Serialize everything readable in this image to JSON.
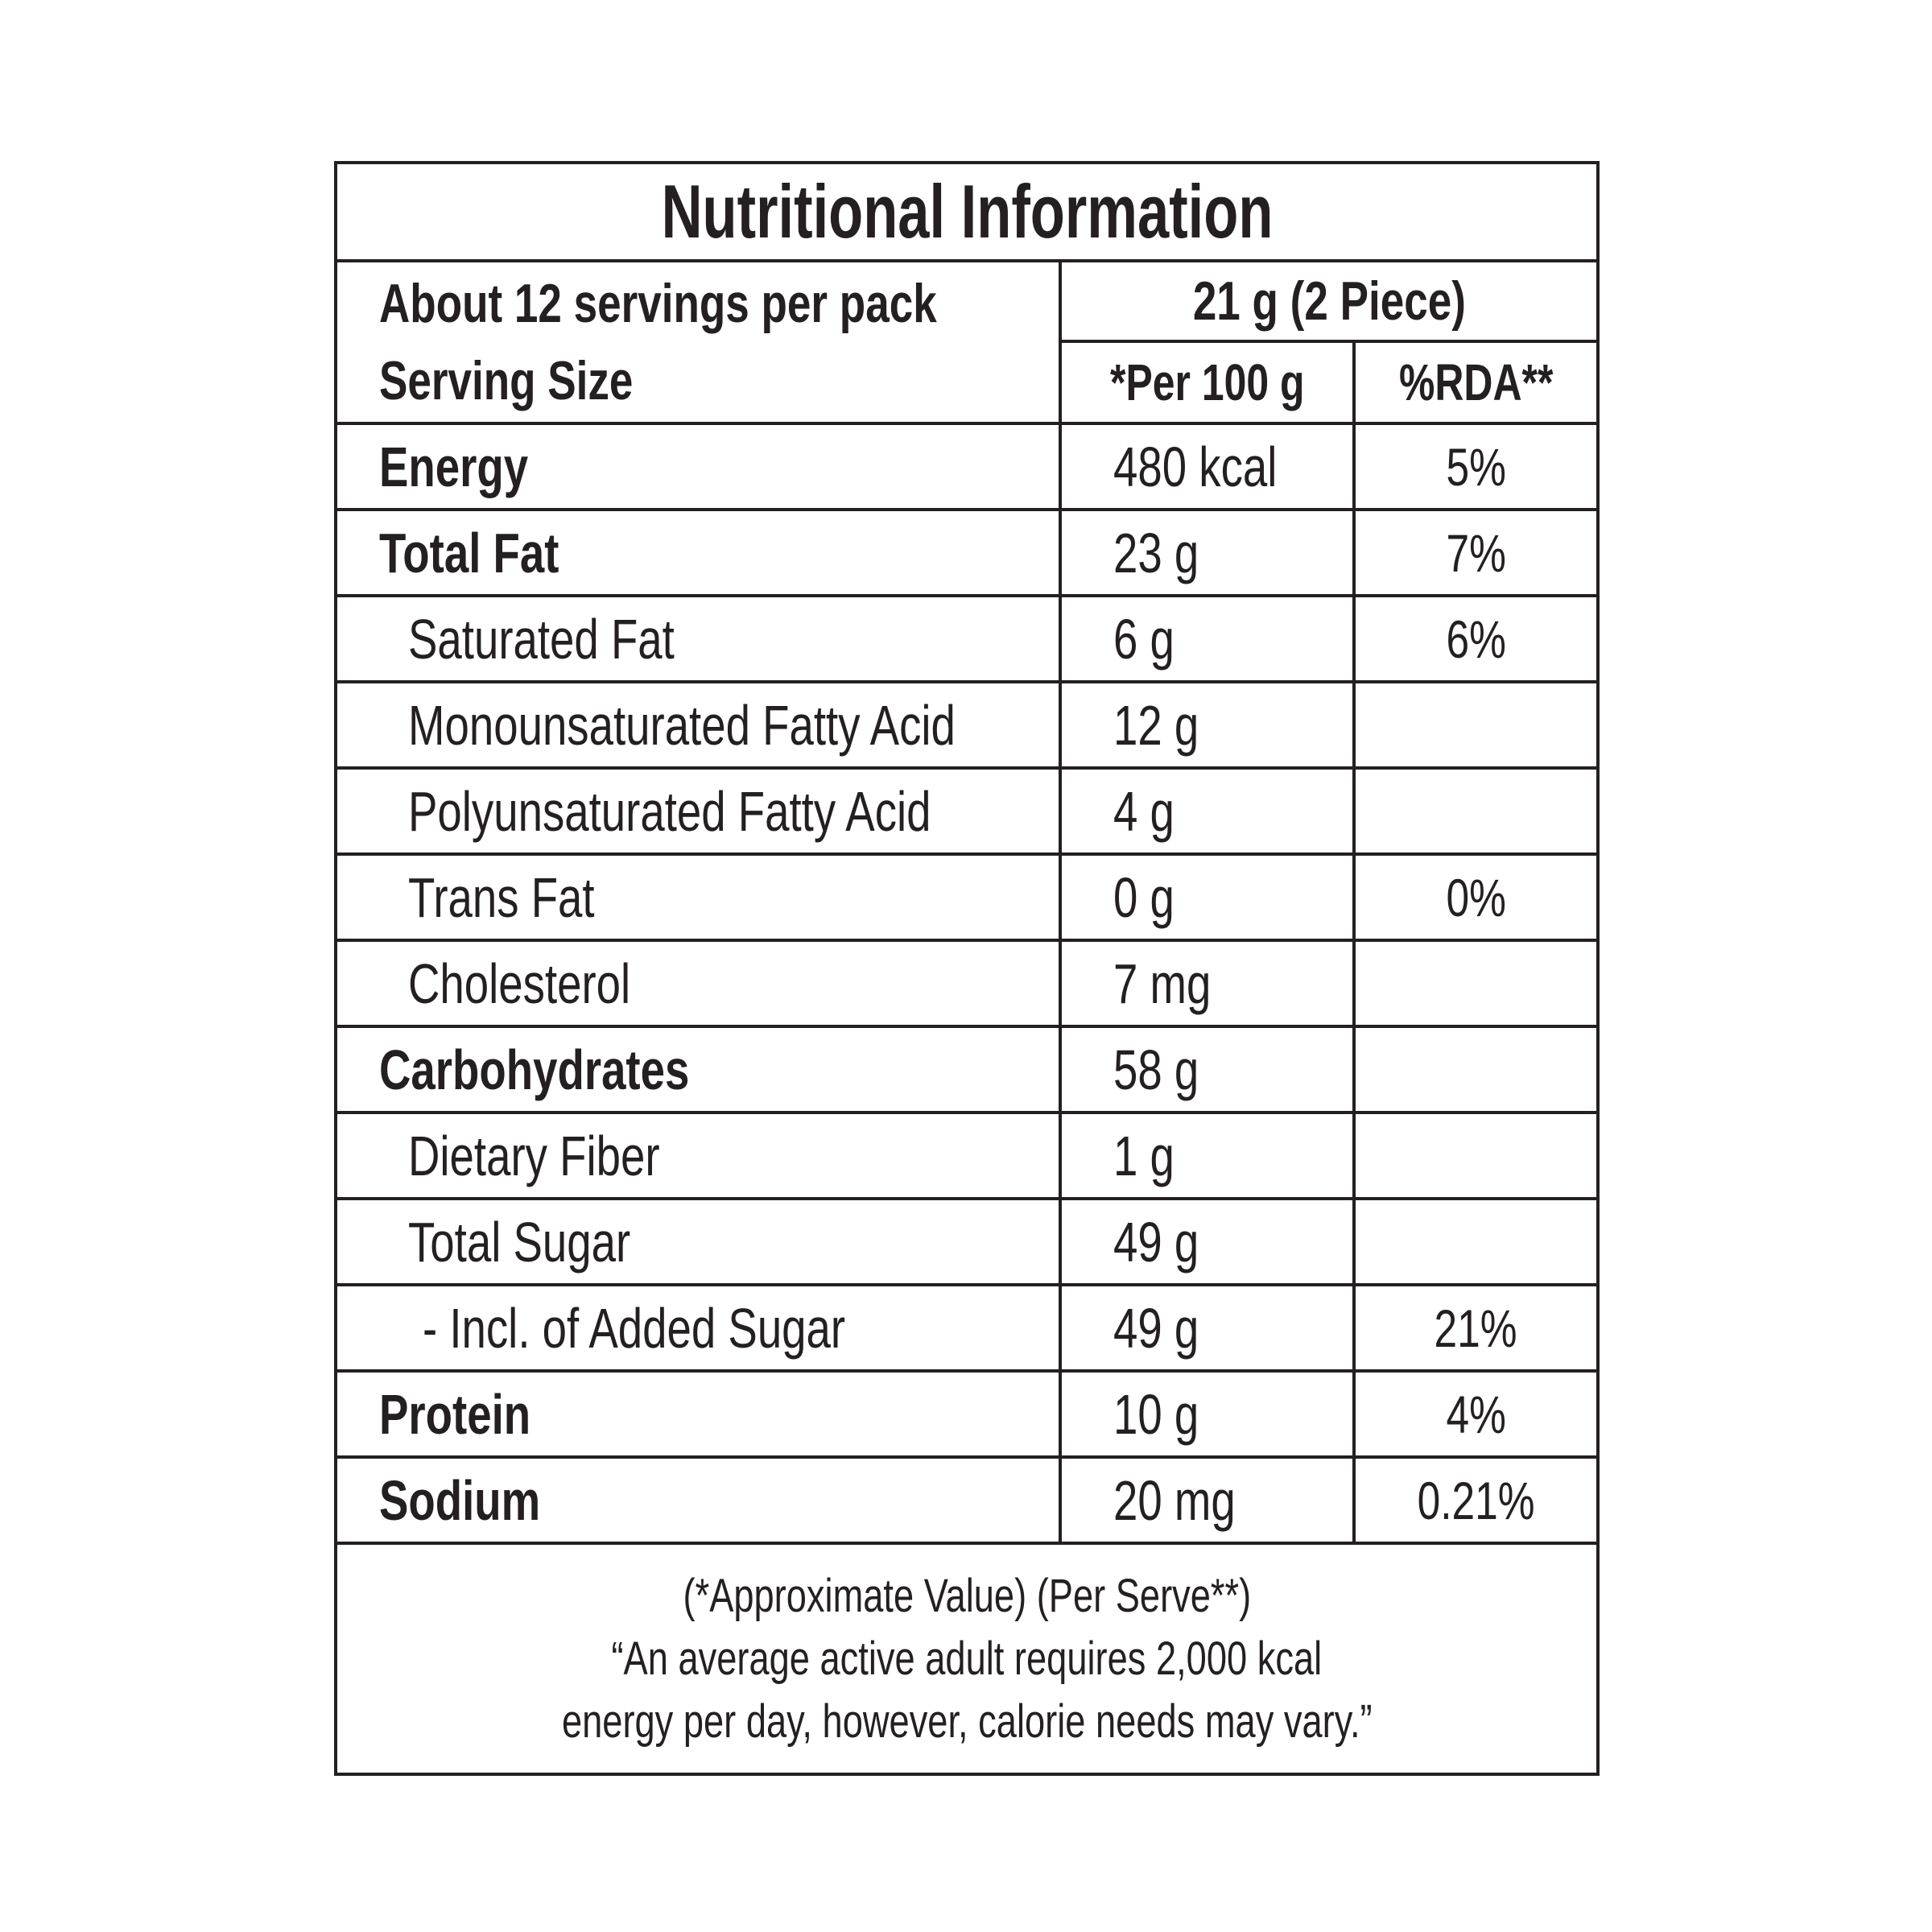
{
  "title": "Nutritional Information",
  "header": {
    "servings_line": "About 12 servings per pack",
    "serving_size_label": "Serving Size",
    "serving_size_value": "21 g (2 Piece)",
    "col_per100": "*Per 100 g",
    "col_rda": "%RDA**"
  },
  "rows": [
    {
      "label": "Energy",
      "value": "480 kcal",
      "rda": "5%",
      "style": "bold",
      "indent": 0
    },
    {
      "label": "Total Fat",
      "value": "23 g",
      "rda": "7%",
      "style": "bold",
      "indent": 0
    },
    {
      "label": "Saturated Fat",
      "value": "6 g",
      "rda": "6%",
      "style": "regular",
      "indent": 1
    },
    {
      "label": "Monounsaturated Fatty Acid",
      "value": "12 g",
      "rda": "",
      "style": "regular",
      "indent": 1
    },
    {
      "label": "Polyunsaturated Fatty Acid",
      "value": "4 g",
      "rda": "",
      "style": "regular",
      "indent": 1
    },
    {
      "label": "Trans Fat",
      "value": "0 g",
      "rda": "0%",
      "style": "regular",
      "indent": 1
    },
    {
      "label": "Cholesterol",
      "value": "7 mg",
      "rda": "",
      "style": "regular",
      "indent": 1
    },
    {
      "label": "Carbohydrates",
      "value": "58 g",
      "rda": "",
      "style": "bold",
      "indent": 0
    },
    {
      "label": "Dietary Fiber",
      "value": "1 g",
      "rda": "",
      "style": "regular",
      "indent": 1
    },
    {
      "label": "Total Sugar",
      "value": "49 g",
      "rda": "",
      "style": "regular",
      "indent": 1
    },
    {
      "label": "- Incl. of Added Sugar",
      "value": "49 g",
      "rda": "21%",
      "style": "regular",
      "indent": 2
    },
    {
      "label": "Protein",
      "value": "10 g",
      "rda": "4%",
      "style": "bold",
      "indent": 0
    },
    {
      "label": "Sodium",
      "value": "20 mg",
      "rda": "0.21%",
      "style": "bold",
      "indent": 0
    }
  ],
  "footer": {
    "line1": "(*Approximate Value) (Per Serve**)",
    "line2": "“An average active adult requires 2,000 kcal",
    "line3": "energy per day, however, calorie needs may vary.”"
  },
  "colors": {
    "text": "#242021",
    "border": "#242021",
    "background": "#ffffff"
  }
}
